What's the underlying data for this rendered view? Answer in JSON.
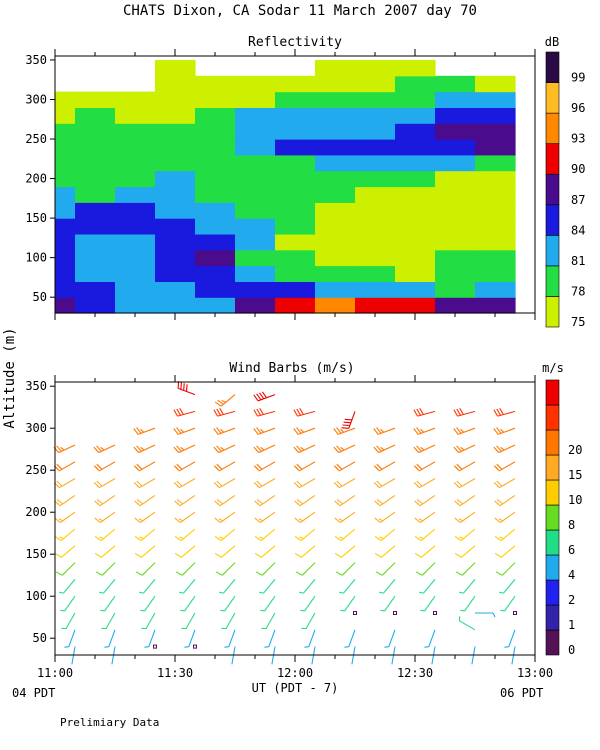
{
  "header": {
    "title": "CHATS Dixon, CA   Sodar   11 March 2007   day   70"
  },
  "footer": {
    "note": "Prelimiary Data",
    "left_date": "04 PDT",
    "right_date": "06 PDT"
  },
  "axes": {
    "ylabel": "Altitude (m)",
    "xlabel": "UT  (PDT - 7)",
    "yticks": [
      50,
      100,
      150,
      200,
      250,
      300,
      350
    ],
    "yrange": [
      30,
      355
    ],
    "xticks": [
      "11:00",
      "11:30",
      "12:00",
      "12:30",
      "13:00"
    ],
    "xrange_minutes": [
      0,
      120
    ]
  },
  "chart_data": [
    {
      "type": "heatmap",
      "title": "Reflectivity",
      "colorbar": {
        "unit": "dB",
        "levels": [
          75,
          78,
          81,
          84,
          87,
          90,
          93,
          96,
          99
        ],
        "colors": [
          "#ccf000",
          "#22dd44",
          "#22aaee",
          "#1a1adf",
          "#4a0c8c",
          "#ee0000",
          "#ff8800",
          "#ffbb22",
          "#2a0a44"
        ]
      },
      "x_minutes": [
        0,
        10,
        20,
        30,
        40,
        50,
        60,
        70,
        80,
        90,
        100,
        110
      ],
      "y": [
        40,
        60,
        80,
        100,
        120,
        140,
        160,
        180,
        200,
        220,
        240,
        260,
        280,
        300,
        320,
        340
      ],
      "z": [
        [
          87,
          84,
          81,
          81,
          81,
          87,
          90,
          93,
          90,
          90,
          87,
          87
        ],
        [
          84,
          84,
          81,
          81,
          84,
          84,
          84,
          81,
          81,
          81,
          78,
          81
        ],
        [
          84,
          81,
          81,
          84,
          84,
          81,
          78,
          78,
          78,
          75,
          78,
          78
        ],
        [
          84,
          81,
          81,
          84,
          87,
          78,
          78,
          75,
          75,
          75,
          78,
          78
        ],
        [
          84,
          81,
          81,
          84,
          84,
          81,
          75,
          75,
          75,
          75,
          75,
          75
        ],
        [
          84,
          84,
          84,
          84,
          81,
          81,
          78,
          75,
          75,
          75,
          75,
          75
        ],
        [
          81,
          84,
          84,
          81,
          81,
          78,
          78,
          75,
          75,
          75,
          75,
          75
        ],
        [
          81,
          78,
          81,
          81,
          78,
          78,
          78,
          78,
          75,
          75,
          75,
          75
        ],
        [
          78,
          78,
          78,
          81,
          78,
          78,
          78,
          78,
          78,
          78,
          75,
          75
        ],
        [
          78,
          78,
          78,
          78,
          78,
          78,
          78,
          81,
          81,
          81,
          81,
          78
        ],
        [
          78,
          78,
          78,
          78,
          78,
          81,
          84,
          84,
          84,
          84,
          84,
          87
        ],
        [
          78,
          78,
          78,
          78,
          78,
          81,
          81,
          81,
          81,
          84,
          87,
          87
        ],
        [
          75,
          78,
          75,
          75,
          78,
          81,
          81,
          81,
          81,
          81,
          84,
          84
        ],
        [
          75,
          75,
          75,
          75,
          75,
          75,
          78,
          78,
          78,
          78,
          81,
          81
        ],
        [
          null,
          null,
          null,
          75,
          75,
          75,
          75,
          75,
          75,
          78,
          78,
          75
        ],
        [
          null,
          null,
          null,
          75,
          null,
          null,
          null,
          75,
          75,
          75,
          null,
          null
        ]
      ]
    },
    {
      "type": "scatter",
      "title": "Wind Barbs (m/s)",
      "colorbar": {
        "unit": "m/s",
        "levels": [
          0,
          1,
          2,
          4,
          6,
          8,
          10,
          15,
          20
        ],
        "colors": [
          "#551155",
          "#3322aa",
          "#2222ee",
          "#22aaee",
          "#22dd88",
          "#66dd22",
          "#ffcc00",
          "#ffaa22",
          "#ff7700",
          "#ff3300",
          "#ee0000"
        ]
      },
      "times_minutes": [
        5,
        15,
        25,
        35,
        45,
        55,
        65,
        75,
        85,
        95,
        105,
        115
      ],
      "heights": [
        40,
        60,
        80,
        100,
        120,
        140,
        160,
        180,
        200,
        220,
        240,
        260,
        280,
        300,
        320,
        340
      ],
      "barbs": [
        [
          [
            2.2,
            190
          ],
          [
            2.5,
            200
          ],
          [
            3.0,
            210
          ],
          [
            3.5,
            215
          ],
          [
            4.5,
            220
          ],
          [
            6.0,
            225
          ],
          [
            7.0,
            230
          ],
          [
            8.0,
            230
          ],
          [
            9.0,
            235
          ],
          [
            10.0,
            235
          ],
          [
            11.0,
            240
          ],
          [
            12.0,
            240
          ],
          [
            13.0,
            245
          ],
          null,
          null,
          null
        ],
        [
          [
            2.2,
            190
          ],
          [
            2.5,
            200
          ],
          [
            3.0,
            210
          ],
          [
            3.5,
            215
          ],
          [
            4.5,
            220
          ],
          [
            6.0,
            225
          ],
          [
            7.0,
            230
          ],
          [
            8.0,
            230
          ],
          [
            9.0,
            235
          ],
          [
            10.0,
            235
          ],
          [
            11.0,
            240
          ],
          [
            12.0,
            240
          ],
          [
            13.0,
            245
          ],
          null,
          null,
          null
        ],
        [
          [
            0.4,
            0
          ],
          [
            2.5,
            200
          ],
          [
            3.0,
            210
          ],
          [
            3.5,
            215
          ],
          [
            4.5,
            220
          ],
          [
            6.0,
            225
          ],
          [
            7.0,
            230
          ],
          [
            8.0,
            230
          ],
          [
            9.0,
            235
          ],
          [
            10.0,
            235
          ],
          [
            11.0,
            240
          ],
          [
            12.0,
            240
          ],
          [
            13.0,
            245
          ],
          [
            14.0,
            250
          ],
          null,
          null
        ],
        [
          [
            0.4,
            0
          ],
          [
            2.5,
            200
          ],
          [
            3.0,
            210
          ],
          [
            3.5,
            215
          ],
          [
            4.5,
            220
          ],
          [
            6.0,
            225
          ],
          [
            7.0,
            230
          ],
          [
            8.0,
            230
          ],
          [
            9.0,
            235
          ],
          [
            10.0,
            235
          ],
          [
            11.0,
            240
          ],
          [
            12.0,
            240
          ],
          [
            13.0,
            245
          ],
          [
            14.0,
            250
          ],
          [
            16.0,
            255
          ],
          [
            20.0,
            290
          ]
        ],
        [
          [
            2.2,
            190
          ],
          [
            2.5,
            200
          ],
          [
            3.0,
            210
          ],
          [
            3.5,
            215
          ],
          [
            4.5,
            220
          ],
          [
            6.0,
            225
          ],
          [
            7.0,
            230
          ],
          [
            8.0,
            230
          ],
          [
            9.0,
            235
          ],
          [
            10.0,
            235
          ],
          [
            11.0,
            240
          ],
          [
            12.0,
            240
          ],
          [
            13.0,
            245
          ],
          [
            14.0,
            250
          ],
          [
            16.0,
            255
          ],
          [
            14.0,
            230
          ]
        ],
        [
          [
            2.2,
            190
          ],
          [
            2.5,
            200
          ],
          [
            3.0,
            210
          ],
          [
            3.5,
            215
          ],
          [
            4.5,
            220
          ],
          [
            6.0,
            225
          ],
          [
            7.0,
            230
          ],
          [
            8.0,
            230
          ],
          [
            9.0,
            235
          ],
          [
            10.0,
            235
          ],
          [
            11.0,
            240
          ],
          [
            12.0,
            240
          ],
          [
            13.0,
            245
          ],
          [
            14.0,
            250
          ],
          [
            16.0,
            255
          ],
          [
            21.0,
            250
          ]
        ],
        [
          [
            2.2,
            190
          ],
          [
            2.5,
            200
          ],
          [
            3.0,
            210
          ],
          [
            3.5,
            215
          ],
          [
            4.5,
            220
          ],
          [
            6.0,
            225
          ],
          [
            7.0,
            230
          ],
          [
            8.0,
            230
          ],
          [
            9.0,
            235
          ],
          [
            10.0,
            235
          ],
          [
            11.0,
            240
          ],
          [
            12.0,
            240
          ],
          [
            13.0,
            245
          ],
          [
            14.0,
            250
          ],
          [
            16.0,
            255
          ],
          null
        ],
        [
          [
            2.2,
            190
          ],
          [
            2.5,
            200
          ],
          [
            0.4,
            0
          ],
          [
            3.5,
            215
          ],
          [
            4.5,
            220
          ],
          [
            6.0,
            225
          ],
          [
            7.0,
            230
          ],
          [
            8.0,
            230
          ],
          [
            9.0,
            235
          ],
          [
            10.0,
            235
          ],
          [
            11.0,
            240
          ],
          [
            12.0,
            240
          ],
          [
            13.0,
            245
          ],
          [
            14.0,
            250
          ],
          [
            22.0,
            200
          ],
          null
        ],
        [
          [
            2.2,
            190
          ],
          [
            2.5,
            200
          ],
          [
            0.4,
            0
          ],
          [
            3.5,
            215
          ],
          [
            4.5,
            220
          ],
          [
            6.0,
            225
          ],
          [
            7.0,
            230
          ],
          [
            8.0,
            230
          ],
          [
            9.0,
            235
          ],
          [
            10.0,
            235
          ],
          [
            11.0,
            240
          ],
          [
            12.0,
            240
          ],
          [
            13.0,
            245
          ],
          [
            14.0,
            250
          ],
          null,
          null
        ],
        [
          [
            2.2,
            190
          ],
          [
            2.5,
            200
          ],
          [
            0.4,
            0
          ],
          [
            3.5,
            215
          ],
          [
            4.5,
            220
          ],
          [
            6.0,
            225
          ],
          [
            7.0,
            230
          ],
          [
            8.0,
            230
          ],
          [
            9.0,
            235
          ],
          [
            10.0,
            235
          ],
          [
            11.0,
            240
          ],
          [
            12.0,
            240
          ],
          [
            13.0,
            245
          ],
          [
            14.0,
            250
          ],
          [
            16.0,
            255
          ],
          null
        ],
        [
          [
            2.2,
            190
          ],
          [
            3.0,
            300
          ],
          [
            2.5,
            90
          ],
          [
            3.5,
            215
          ],
          [
            4.5,
            220
          ],
          [
            6.0,
            225
          ],
          [
            7.0,
            230
          ],
          [
            8.0,
            230
          ],
          [
            9.0,
            235
          ],
          [
            10.0,
            235
          ],
          [
            11.0,
            240
          ],
          [
            12.0,
            240
          ],
          [
            13.0,
            245
          ],
          [
            14.0,
            250
          ],
          [
            16.0,
            255
          ],
          null
        ],
        [
          [
            2.2,
            190
          ],
          [
            2.5,
            200
          ],
          [
            0.4,
            0
          ],
          [
            3.5,
            215
          ],
          [
            4.5,
            220
          ],
          [
            6.0,
            225
          ],
          [
            7.0,
            230
          ],
          [
            8.0,
            230
          ],
          [
            9.0,
            235
          ],
          [
            10.0,
            235
          ],
          [
            11.0,
            240
          ],
          [
            12.0,
            240
          ],
          [
            13.0,
            245
          ],
          [
            14.0,
            250
          ],
          [
            16.0,
            255
          ],
          null
        ]
      ]
    }
  ]
}
